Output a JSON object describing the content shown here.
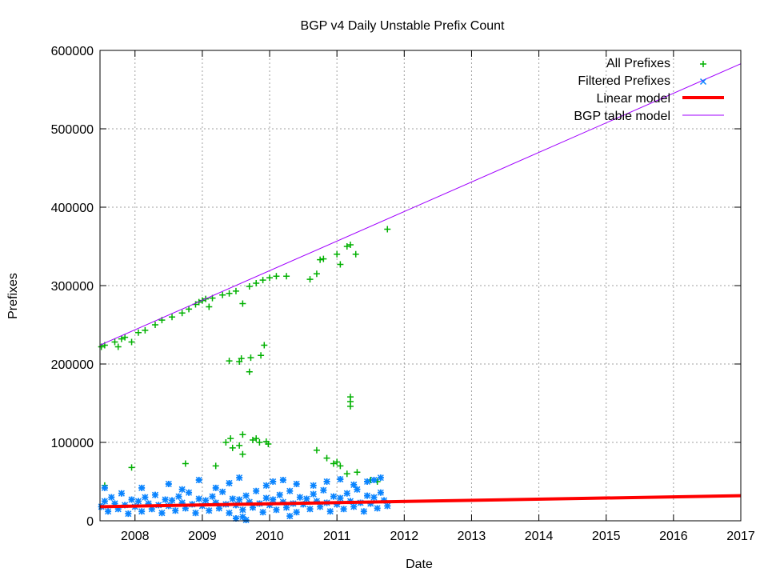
{
  "chart_data": {
    "type": "scatter",
    "title": "BGP v4 Daily Unstable Prefix Count",
    "xlabel": "Date",
    "ylabel": "Prefixes",
    "xlim": [
      2007.48,
      2017
    ],
    "ylim": [
      0,
      600000
    ],
    "x_ticks": [
      "2008",
      "2009",
      "2010",
      "2011",
      "2012",
      "2013",
      "2014",
      "2015",
      "2016",
      "2017"
    ],
    "y_ticks": [
      "0",
      "100000",
      "200000",
      "300000",
      "400000",
      "500000",
      "600000"
    ],
    "grid": true,
    "legend_position": "top-right",
    "colors": {
      "all": "#00b000",
      "filtered": "#0a84ff",
      "linear": "#ff0000",
      "bgp": "#a000ff",
      "grid": "#a0a0a0"
    },
    "series": [
      {
        "name": "All Prefixes",
        "marker": "plus",
        "points": [
          [
            2007.5,
            222000
          ],
          [
            2007.55,
            224000
          ],
          [
            2007.7,
            228000
          ],
          [
            2007.75,
            222000
          ],
          [
            2007.8,
            232000
          ],
          [
            2007.85,
            234000
          ],
          [
            2007.95,
            228000
          ],
          [
            2008.05,
            240000
          ],
          [
            2008.15,
            243000
          ],
          [
            2008.3,
            250000
          ],
          [
            2008.4,
            256000
          ],
          [
            2008.55,
            260000
          ],
          [
            2008.7,
            265000
          ],
          [
            2008.8,
            270000
          ],
          [
            2008.9,
            276000
          ],
          [
            2008.95,
            279000
          ],
          [
            2009.0,
            281000
          ],
          [
            2009.05,
            283000
          ],
          [
            2009.1,
            273000
          ],
          [
            2009.15,
            284000
          ],
          [
            2009.3,
            288000
          ],
          [
            2009.4,
            290000
          ],
          [
            2009.5,
            293000
          ],
          [
            2009.6,
            277000
          ],
          [
            2009.7,
            299000
          ],
          [
            2009.8,
            303000
          ],
          [
            2009.9,
            307000
          ],
          [
            2010.0,
            310000
          ],
          [
            2010.1,
            312000
          ],
          [
            2010.25,
            312000
          ],
          [
            2010.6,
            308000
          ],
          [
            2010.7,
            315000
          ],
          [
            2010.75,
            333000
          ],
          [
            2010.8,
            334000
          ],
          [
            2011.0,
            340000
          ],
          [
            2011.05,
            327000
          ],
          [
            2011.15,
            350000
          ],
          [
            2011.2,
            352000
          ],
          [
            2011.28,
            340000
          ],
          [
            2011.75,
            372000
          ],
          [
            2009.4,
            204000
          ],
          [
            2009.55,
            203000
          ],
          [
            2009.58,
            207000
          ],
          [
            2009.7,
            190000
          ],
          [
            2009.72,
            208000
          ],
          [
            2009.87,
            211000
          ],
          [
            2009.92,
            224000
          ],
          [
            2011.2,
            158000
          ],
          [
            2011.2,
            152000
          ],
          [
            2011.2,
            146000
          ],
          [
            2009.35,
            100000
          ],
          [
            2009.42,
            105000
          ],
          [
            2009.45,
            93000
          ],
          [
            2009.55,
            96000
          ],
          [
            2009.6,
            110000
          ],
          [
            2009.6,
            85000
          ],
          [
            2009.75,
            103000
          ],
          [
            2009.8,
            105000
          ],
          [
            2009.85,
            100000
          ],
          [
            2009.95,
            101000
          ],
          [
            2009.98,
            98000
          ],
          [
            2007.55,
            45000
          ],
          [
            2007.95,
            68000
          ],
          [
            2008.75,
            73000
          ],
          [
            2009.2,
            70000
          ],
          [
            2010.7,
            90000
          ],
          [
            2010.85,
            80000
          ],
          [
            2010.95,
            73000
          ],
          [
            2011.0,
            75000
          ],
          [
            2011.05,
            70000
          ],
          [
            2011.15,
            60000
          ],
          [
            2011.3,
            62000
          ],
          [
            2011.5,
            52000
          ],
          [
            2011.6,
            50000
          ]
        ]
      },
      {
        "name": "Filtered Prefixes",
        "marker": "cross",
        "points": [
          [
            2007.5,
            18000
          ],
          [
            2007.55,
            25000
          ],
          [
            2007.6,
            12000
          ],
          [
            2007.65,
            30000
          ],
          [
            2007.7,
            22000
          ],
          [
            2007.75,
            15000
          ],
          [
            2007.8,
            35000
          ],
          [
            2007.85,
            20000
          ],
          [
            2007.9,
            9000
          ],
          [
            2007.95,
            27000
          ],
          [
            2008.0,
            18000
          ],
          [
            2008.05,
            25000
          ],
          [
            2008.1,
            12000
          ],
          [
            2008.15,
            30000
          ],
          [
            2008.2,
            22000
          ],
          [
            2008.25,
            15000
          ],
          [
            2008.3,
            33000
          ],
          [
            2008.35,
            20000
          ],
          [
            2008.4,
            10000
          ],
          [
            2008.45,
            27000
          ],
          [
            2008.5,
            19000
          ],
          [
            2008.55,
            26000
          ],
          [
            2008.6,
            13000
          ],
          [
            2008.65,
            31000
          ],
          [
            2008.7,
            23000
          ],
          [
            2008.75,
            16000
          ],
          [
            2008.8,
            36000
          ],
          [
            2008.85,
            21000
          ],
          [
            2008.9,
            10000
          ],
          [
            2008.95,
            28000
          ],
          [
            2009.0,
            19000
          ],
          [
            2009.05,
            26000
          ],
          [
            2009.1,
            13000
          ],
          [
            2009.15,
            31000
          ],
          [
            2009.2,
            23000
          ],
          [
            2009.25,
            16000
          ],
          [
            2009.3,
            37000
          ],
          [
            2009.35,
            21000
          ],
          [
            2009.4,
            10000
          ],
          [
            2009.45,
            28000
          ],
          [
            2009.5,
            20000
          ],
          [
            2009.55,
            27000
          ],
          [
            2009.6,
            14000
          ],
          [
            2009.65,
            32000
          ],
          [
            2009.7,
            24000
          ],
          [
            2009.75,
            17000
          ],
          [
            2009.8,
            38000
          ],
          [
            2009.85,
            22000
          ],
          [
            2009.9,
            11000
          ],
          [
            2009.95,
            29000
          ],
          [
            2010.0,
            20000
          ],
          [
            2010.05,
            27000
          ],
          [
            2010.1,
            14000
          ],
          [
            2010.15,
            33000
          ],
          [
            2010.2,
            24000
          ],
          [
            2010.25,
            17000
          ],
          [
            2010.3,
            38000
          ],
          [
            2010.35,
            22000
          ],
          [
            2010.4,
            11000
          ],
          [
            2010.45,
            30000
          ],
          [
            2010.5,
            21000
          ],
          [
            2010.55,
            28000
          ],
          [
            2010.6,
            15000
          ],
          [
            2010.65,
            34000
          ],
          [
            2010.7,
            25000
          ],
          [
            2010.75,
            18000
          ],
          [
            2010.8,
            39000
          ],
          [
            2010.85,
            23000
          ],
          [
            2010.9,
            12000
          ],
          [
            2010.95,
            31000
          ],
          [
            2011.0,
            21000
          ],
          [
            2011.05,
            29000
          ],
          [
            2011.1,
            15000
          ],
          [
            2011.15,
            35000
          ],
          [
            2011.2,
            25000
          ],
          [
            2011.25,
            18000
          ],
          [
            2011.3,
            40000
          ],
          [
            2011.35,
            23000
          ],
          [
            2011.4,
            12000
          ],
          [
            2011.45,
            32000
          ],
          [
            2011.5,
            22000
          ],
          [
            2011.55,
            30000
          ],
          [
            2011.6,
            16000
          ],
          [
            2011.65,
            36000
          ],
          [
            2011.7,
            26000
          ],
          [
            2011.75,
            19000
          ],
          [
            2007.55,
            42000
          ],
          [
            2008.1,
            42000
          ],
          [
            2008.5,
            47000
          ],
          [
            2008.7,
            40000
          ],
          [
            2008.95,
            52000
          ],
          [
            2009.2,
            42000
          ],
          [
            2009.4,
            48000
          ],
          [
            2009.55,
            55000
          ],
          [
            2009.95,
            45000
          ],
          [
            2010.05,
            50000
          ],
          [
            2010.2,
            52000
          ],
          [
            2010.4,
            47000
          ],
          [
            2010.65,
            45000
          ],
          [
            2010.85,
            50000
          ],
          [
            2011.05,
            53000
          ],
          [
            2011.25,
            46000
          ],
          [
            2011.45,
            50000
          ],
          [
            2011.55,
            52000
          ],
          [
            2011.65,
            55000
          ],
          [
            2009.5,
            3000
          ],
          [
            2009.6,
            5000
          ],
          [
            2009.65,
            1000
          ],
          [
            2010.3,
            6000
          ]
        ]
      },
      {
        "name": "Linear model",
        "type": "line",
        "points": [
          [
            2007.48,
            18000
          ],
          [
            2017,
            32000
          ]
        ]
      },
      {
        "name": "BGP table model",
        "type": "line",
        "points": [
          [
            2007.48,
            224000
          ],
          [
            2017,
            583000
          ]
        ]
      }
    ]
  }
}
